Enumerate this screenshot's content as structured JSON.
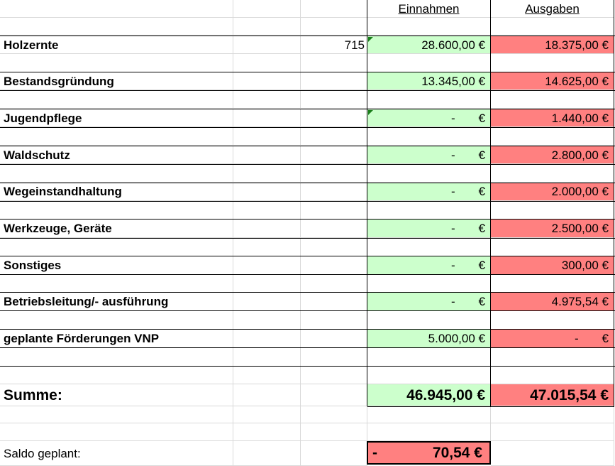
{
  "headers": {
    "income": "Einnahmen",
    "expenses": "Ausgaben"
  },
  "rows": [
    {
      "label": "Holzernte",
      "extra": "715",
      "income": "28.600,00 €",
      "expense": "18.375,00 €"
    },
    {
      "label": "Bestandsgründung",
      "income": "13.345,00 €",
      "expense": "14.625,00 €"
    },
    {
      "label": "Jugendpflege",
      "income_dash": "-",
      "income_currency": "€",
      "expense": "1.440,00 €"
    },
    {
      "label": "Waldschutz",
      "income_dash": "-",
      "income_currency": "€",
      "expense": "2.800,00 €"
    },
    {
      "label": "Wegeinstandhaltung",
      "income_dash": "-",
      "income_currency": "€",
      "expense": "2.000,00 €"
    },
    {
      "label": "Werkzeuge, Geräte",
      "income_dash": "-",
      "income_currency": "€",
      "expense": "2.500,00 €"
    },
    {
      "label": "Sonstiges",
      "income_dash": "-",
      "income_currency": "€",
      "expense": "300,00 €"
    },
    {
      "label": "Betriebsleitung/- ausführung",
      "income_dash": "-",
      "income_currency": "€",
      "expense": "4.975,54 €"
    },
    {
      "label": "geplante Förderungen VNP",
      "income": "5.000,00 €",
      "expense_dash": "-",
      "expense_currency": "€"
    }
  ],
  "summary": {
    "label": "Summe:",
    "income_total": "46.945,00 €",
    "expense_total": "47.015,54 €"
  },
  "saldo": {
    "label": "Saldo geplant:",
    "sign": "-",
    "value": "70,54 €"
  },
  "colors": {
    "income_fill": "#ccffcc",
    "expense_fill": "#ff8080",
    "comment_marker": "#1a7f1a"
  }
}
